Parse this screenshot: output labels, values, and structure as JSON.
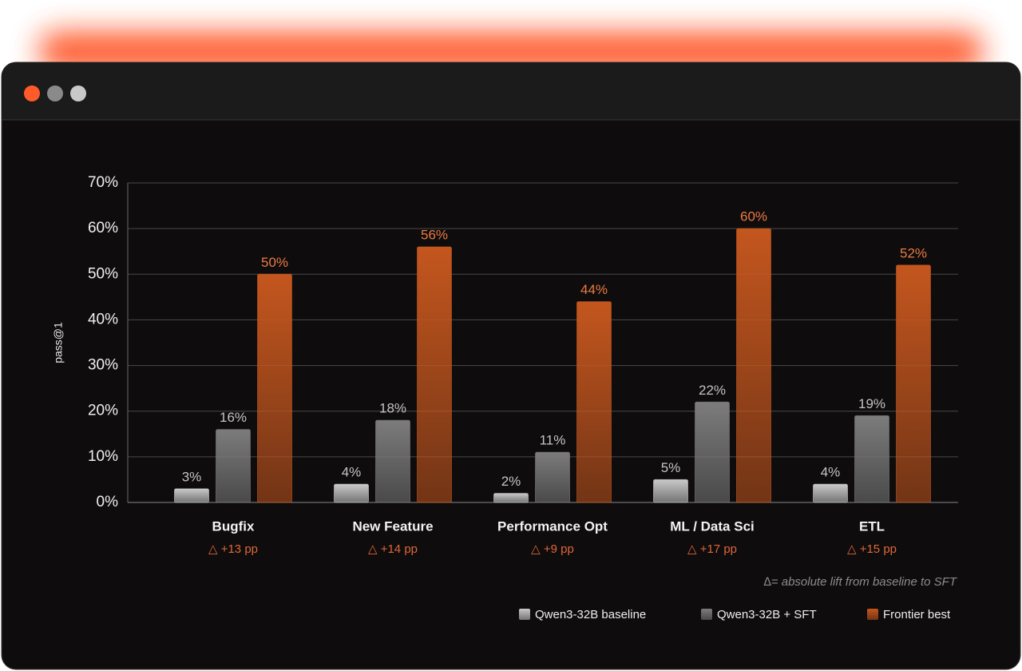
{
  "chart_data": {
    "type": "bar",
    "y_label": "pass@1",
    "categories": [
      "Bugfix",
      "New Feature",
      "Performance Opt",
      "ML / Data Sci",
      "ETL"
    ],
    "annotations": [
      "△ +13 pp",
      "△ +14 pp",
      "△ +9 pp",
      "△ +17 pp",
      "△ +15 pp"
    ],
    "footnote": "∆= absolute lift from baseline to SFT",
    "series": [
      {
        "name": "Qwen3-32B baseline",
        "color": "#c9c9c9",
        "values": [
          3,
          4,
          2,
          5,
          4
        ],
        "value_labels": [
          "3%",
          "4%",
          "2%",
          "5%",
          "4%"
        ]
      },
      {
        "name": "Qwen3-32B + SFT",
        "color": "#7c7c7c",
        "values": [
          16,
          18,
          11,
          22,
          19
        ],
        "value_labels": [
          "16%",
          "18%",
          "11%",
          "22%",
          "19%"
        ]
      },
      {
        "name": "Frontier best",
        "color": "#c4561e",
        "values": [
          50,
          56,
          44,
          60,
          52
        ],
        "value_labels": [
          "50%",
          "56%",
          "44%",
          "60%",
          "52%"
        ]
      }
    ],
    "ylim": [
      0,
      70
    ],
    "yticks": [
      {
        "value": 0,
        "label": "0%"
      },
      {
        "value": 10,
        "label": "10%"
      },
      {
        "value": 20,
        "label": "20%"
      },
      {
        "value": 30,
        "label": "30%"
      },
      {
        "value": 40,
        "label": "40%"
      },
      {
        "value": 50,
        "label": "50%"
      },
      {
        "value": 60,
        "label": "60%"
      },
      {
        "value": 70,
        "label": "70%"
      }
    ],
    "grid": true,
    "legend": "bottom-right"
  }
}
